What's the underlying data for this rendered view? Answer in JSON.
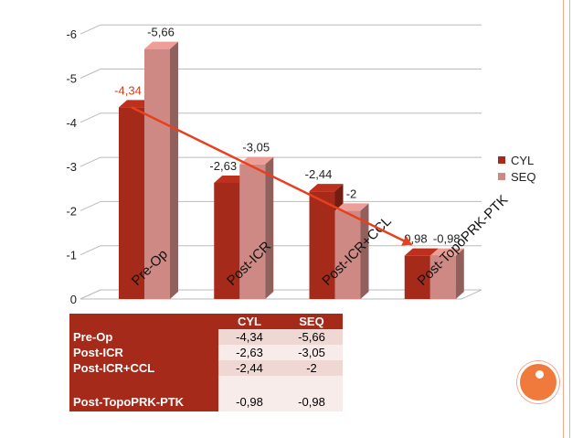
{
  "chart_data": {
    "type": "bar",
    "categories": [
      "Pre-Op",
      "Post-ICR",
      "Post-ICR+CCL",
      "Post-TopoPRK-PTK"
    ],
    "series": [
      {
        "name": "CYL",
        "values": [
          -4.34,
          -2.63,
          -2.44,
          -0.98
        ],
        "labels": [
          "-4,34",
          "-2,63",
          "-2,44",
          "-0,98"
        ],
        "color": "#a52a1a"
      },
      {
        "name": "SEQ",
        "values": [
          -5.66,
          -3.05,
          -2.0,
          -0.98
        ],
        "labels": [
          "-5,66",
          "-3,05",
          "-2",
          "-0,98"
        ],
        "color": "#cf8984"
      }
    ],
    "yticks": [
      "0",
      "-1",
      "-2",
      "-3",
      "-4",
      "-5",
      "-6"
    ],
    "ylim": [
      0,
      -6
    ],
    "grid": true,
    "legend": "right",
    "trend_arrow": {
      "from_category": "Pre-Op",
      "from_value": -4.34,
      "to_category": "Post-TopoPRK-PTK",
      "to_value": -0.98,
      "color": "#e8401e"
    }
  },
  "table": {
    "headers": [
      "",
      "CYL",
      "SEQ"
    ],
    "rows": [
      {
        "label": "Pre-Op",
        "cyl": "-4,34",
        "seq": "-5,66"
      },
      {
        "label": "Post-ICR",
        "cyl": "-2,63",
        "seq": "-3,05"
      },
      {
        "label": "Post-ICR+CCL",
        "cyl": "-2,44",
        "seq": "-2"
      },
      {
        "label": "Post-TopoPRK-PTK",
        "cyl": "-0,98",
        "seq": "-0,98"
      }
    ]
  },
  "legend": {
    "items": [
      {
        "label": "CYL",
        "color": "#a52a1a"
      },
      {
        "label": "SEQ",
        "color": "#cf8984"
      }
    ]
  }
}
